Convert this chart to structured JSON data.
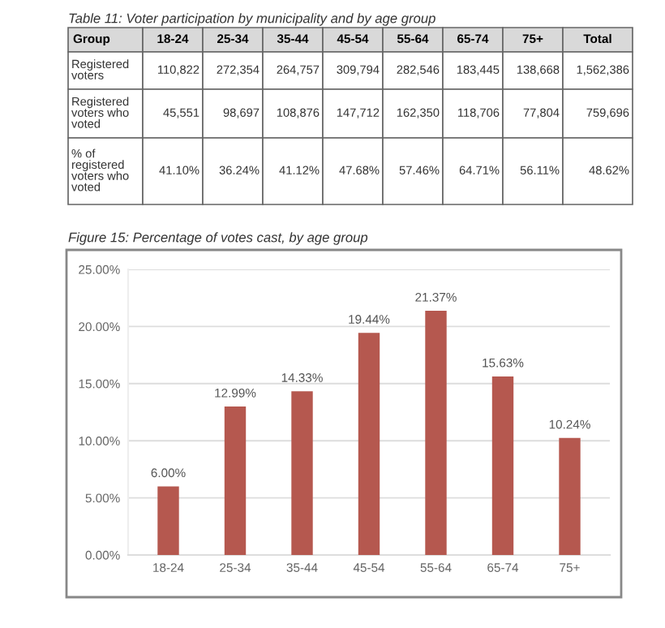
{
  "chart_data": [
    {
      "type": "other",
      "title": "Table 11: Voter participation by municipality and by age group",
      "categories": [
        "Group",
        "18-24",
        "25-34",
        "35-44",
        "45-54",
        "55-64",
        "65-74",
        "75+",
        "Total"
      ],
      "annotations": [
        "Registered voters",
        "110,822",
        "272,354",
        "264,757",
        "309,794",
        "282,546",
        "183,445",
        "138,668",
        "1,562,386",
        "Registered voters who voted",
        "45,551",
        "98,697",
        "108,876",
        "147,712",
        "162,350",
        "118,706",
        "77,804",
        "759,696",
        "% of registered voters who voted",
        "41.10%",
        "36.24%",
        "41.12%",
        "47.68%",
        "57.46%",
        "64.71%",
        "56.11%",
        "48.62%"
      ]
    },
    {
      "type": "bar",
      "title": "Figure 15: Percentage of votes cast, by age group",
      "categories": [
        "18-24",
        "25-34",
        "35-44",
        "45-54",
        "55-64",
        "65-74",
        "75+"
      ],
      "values": [
        6.0,
        12.99,
        14.33,
        19.44,
        21.37,
        15.63,
        10.24
      ],
      "value_labels": [
        "6.00%",
        "12.99%",
        "14.33%",
        "19.44%",
        "21.37%",
        "15.63%",
        "10.24%"
      ],
      "color": "#b5584f",
      "ylim": [
        0,
        25
      ],
      "yticks": [
        {
          "value": 0,
          "label": "0.00%"
        },
        {
          "value": 5,
          "label": "5.00%"
        },
        {
          "value": 10,
          "label": "10.00%"
        },
        {
          "value": 15,
          "label": "15.00%"
        },
        {
          "value": 20,
          "label": "20.00%"
        },
        {
          "value": 25,
          "label": "25.00%"
        }
      ],
      "grid": "y",
      "legend": false
    }
  ]
}
